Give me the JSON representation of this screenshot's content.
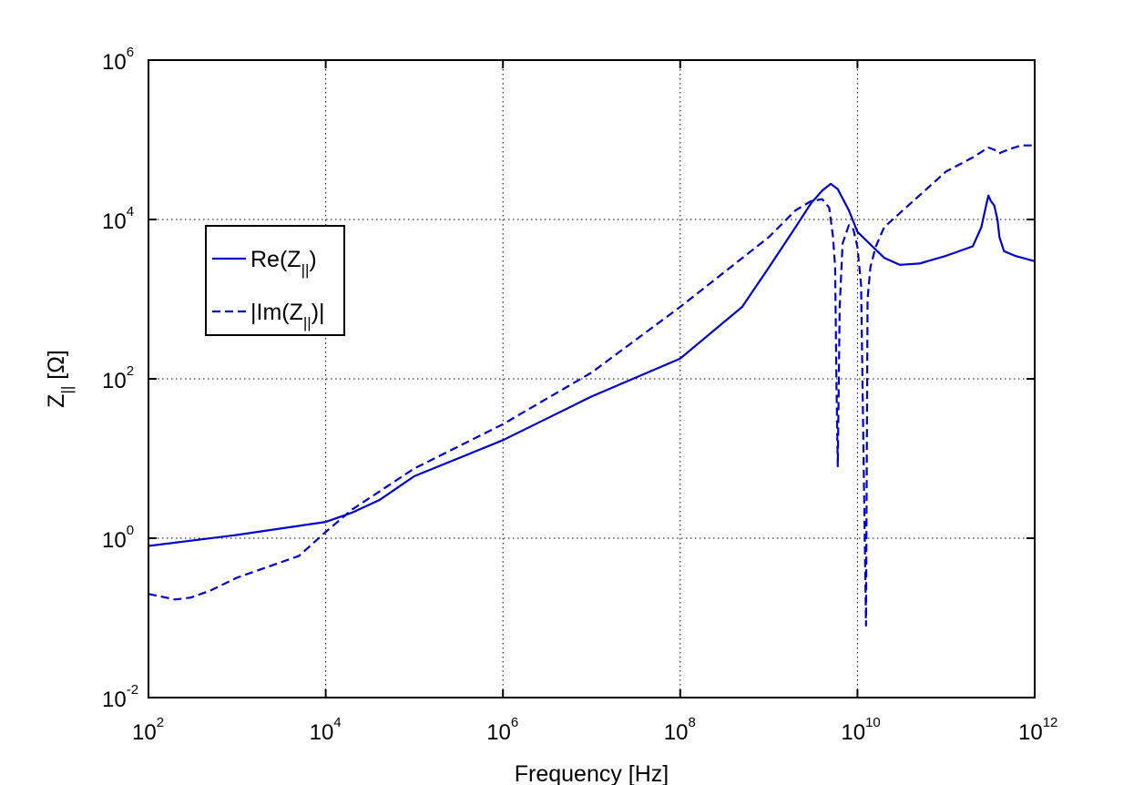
{
  "chart_data": {
    "type": "line",
    "xlabel": "Frequency [Hz]",
    "ylabel": "Z_|| [Ω]",
    "xscale": "log",
    "yscale": "log",
    "xlim": [
      100,
      1000000000000
    ],
    "ylim": [
      0.01,
      1000000
    ],
    "grid": true,
    "legend_position": "upper-left",
    "x_ticks": [
      {
        "base": "10",
        "exp": "2",
        "value": 100
      },
      {
        "base": "10",
        "exp": "4",
        "value": 10000
      },
      {
        "base": "10",
        "exp": "6",
        "value": 1000000
      },
      {
        "base": "10",
        "exp": "8",
        "value": 100000000
      },
      {
        "base": "10",
        "exp": "10",
        "value": 10000000000
      },
      {
        "base": "10",
        "exp": "12",
        "value": 1000000000000
      }
    ],
    "y_ticks": [
      {
        "base": "10",
        "exp": "-2",
        "value": 0.01
      },
      {
        "base": "10",
        "exp": "0",
        "value": 1
      },
      {
        "base": "10",
        "exp": "2",
        "value": 100
      },
      {
        "base": "10",
        "exp": "4",
        "value": 10000
      },
      {
        "base": "10",
        "exp": "6",
        "value": 1000000
      }
    ],
    "series": [
      {
        "name": "Re(Z_||)",
        "legend_main": "Re(Z",
        "legend_sub": "||",
        "legend_tail": ")",
        "style": "solid",
        "color": "#0000cc",
        "x": [
          100,
          1000,
          10000,
          20000,
          40000,
          100000,
          1000000,
          10000000,
          100000000,
          500000000,
          1000000000,
          2000000000,
          3000000000,
          4000000000,
          5000000000,
          6000000000,
          8000000000,
          10000000000,
          20000000000,
          30000000000,
          50000000000,
          100000000000,
          200000000000,
          250000000000,
          300000000000,
          320000000000,
          350000000000,
          380000000000,
          400000000000,
          450000000000,
          600000000000,
          1000000000000
        ],
        "y": [
          0.8,
          1.1,
          1.6,
          2.1,
          3.0,
          6.0,
          17,
          60,
          180,
          800,
          2500,
          8000,
          16000,
          23000,
          28000,
          24000,
          13000,
          7000,
          3300,
          2700,
          2800,
          3500,
          4600,
          8000,
          20000,
          17000,
          15000,
          10000,
          6000,
          4000,
          3500,
          3000
        ]
      },
      {
        "name": "|Im(Z_||)|",
        "legend_main": "|Im(Z",
        "legend_sub": "||",
        "legend_tail": ")|",
        "style": "dashed",
        "color": "#0000cc",
        "x": [
          100,
          200,
          300,
          500,
          1000,
          5000,
          10000,
          20000,
          100000,
          1000000,
          10000000,
          100000000,
          1000000000,
          2000000000,
          3000000000,
          4000000000,
          4800000000,
          5300000000,
          5600000000,
          5800000000,
          6000000000,
          6300000000,
          6800000000,
          8000000000,
          9000000000,
          10000000000,
          11000000000,
          12500000000,
          13000000000,
          14000000000,
          16000000000,
          20000000000,
          50000000000,
          100000000000,
          200000000000,
          300000000000,
          350000000000,
          400000000000,
          500000000000,
          700000000000,
          1000000000000
        ],
        "y": [
          0.2,
          0.17,
          0.18,
          0.22,
          0.32,
          0.6,
          1.2,
          2.3,
          7.5,
          27,
          120,
          800,
          6000,
          13000,
          17000,
          18000,
          14000,
          6000,
          2500,
          80,
          8,
          800,
          5000,
          8500,
          7500,
          4500,
          1500,
          0.08,
          1000,
          2500,
          4500,
          8000,
          20000,
          40000,
          60000,
          80000,
          75000,
          68000,
          75000,
          85000,
          85000
        ]
      }
    ]
  }
}
